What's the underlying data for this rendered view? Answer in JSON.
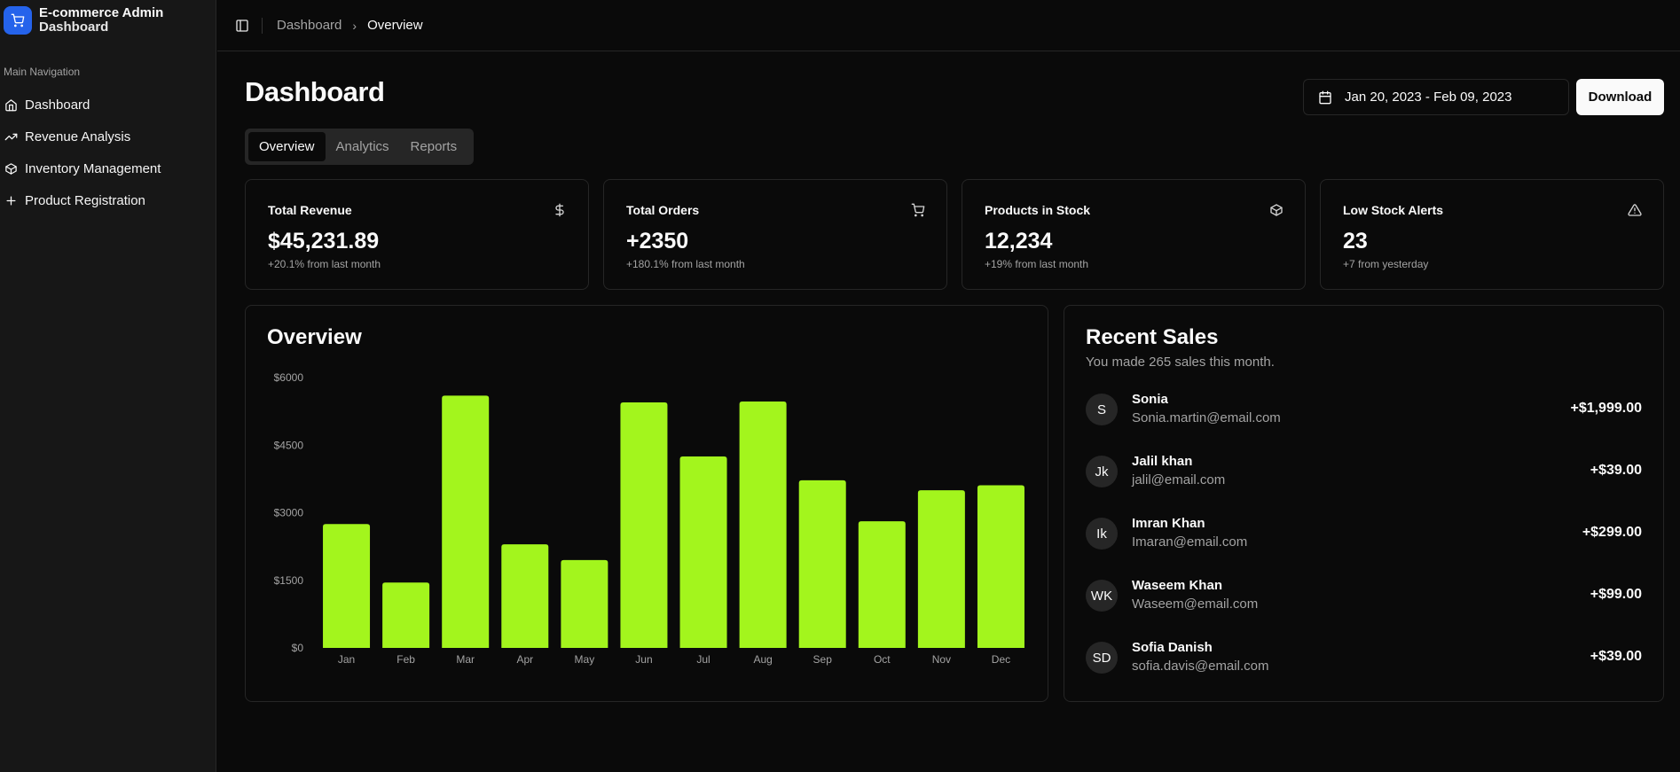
{
  "brand": {
    "title": "E-commerce Admin",
    "subtitle": "Dashboard",
    "icon": "shopping-cart-icon",
    "color": "#2563eb"
  },
  "sidebar": {
    "group_label": "Main Navigation",
    "items": [
      {
        "label": "Dashboard",
        "icon": "home-icon"
      },
      {
        "label": "Revenue Analysis",
        "icon": "trending-up-icon"
      },
      {
        "label": "Inventory Management",
        "icon": "package-icon"
      },
      {
        "label": "Product Registration",
        "icon": "plus-icon"
      }
    ]
  },
  "header": {
    "breadcrumb": [
      "Dashboard",
      "Overview"
    ]
  },
  "main": {
    "title": "Dashboard",
    "date_range": "Jan 20, 2023 - Feb 09, 2023",
    "download_label": "Download",
    "tabs": [
      {
        "label": "Overview",
        "active": true
      },
      {
        "label": "Analytics",
        "active": false
      },
      {
        "label": "Reports",
        "active": false
      }
    ]
  },
  "stats": [
    {
      "label": "Total Revenue",
      "value": "$45,231.89",
      "note": "+20.1% from last month",
      "icon": "dollar-icon"
    },
    {
      "label": "Total Orders",
      "value": "+2350",
      "note": "+180.1% from last month",
      "icon": "cart-icon"
    },
    {
      "label": "Products in Stock",
      "value": "12,234",
      "note": "+19% from last month",
      "icon": "package-icon"
    },
    {
      "label": "Low Stock Alerts",
      "value": "23",
      "note": "+7 from yesterday",
      "icon": "alert-triangle-icon"
    }
  ],
  "overview": {
    "title": "Overview"
  },
  "chart_data": {
    "type": "bar",
    "categories": [
      "Jan",
      "Feb",
      "Mar",
      "Apr",
      "May",
      "Jun",
      "Jul",
      "Aug",
      "Sep",
      "Oct",
      "Nov",
      "Dec"
    ],
    "values": [
      2750,
      1450,
      5600,
      2300,
      1950,
      5450,
      4250,
      5470,
      3720,
      2810,
      3500,
      3610
    ],
    "yticks": [
      "$0",
      "$1500",
      "$3000",
      "$4500",
      "$6000"
    ],
    "ylim": [
      0,
      6000
    ],
    "bar_color": "#a3f51d",
    "grid": false
  },
  "recent_sales": {
    "title": "Recent Sales",
    "subtitle": "You made 265 sales this month.",
    "rows": [
      {
        "initials": "S",
        "name": "Sonia",
        "email": "Sonia.martin@email.com",
        "amount": "+$1,999.00"
      },
      {
        "initials": "Jk",
        "name": "Jalil khan",
        "email": "jalil@email.com",
        "amount": "+$39.00"
      },
      {
        "initials": "Ik",
        "name": "Imran Khan",
        "email": "Imaran@email.com",
        "amount": "+$299.00"
      },
      {
        "initials": "WK",
        "name": "Waseem Khan",
        "email": "Waseem@email.com",
        "amount": "+$99.00"
      },
      {
        "initials": "SD",
        "name": "Sofia Danish",
        "email": "sofia.davis@email.com",
        "amount": "+$39.00"
      }
    ]
  }
}
